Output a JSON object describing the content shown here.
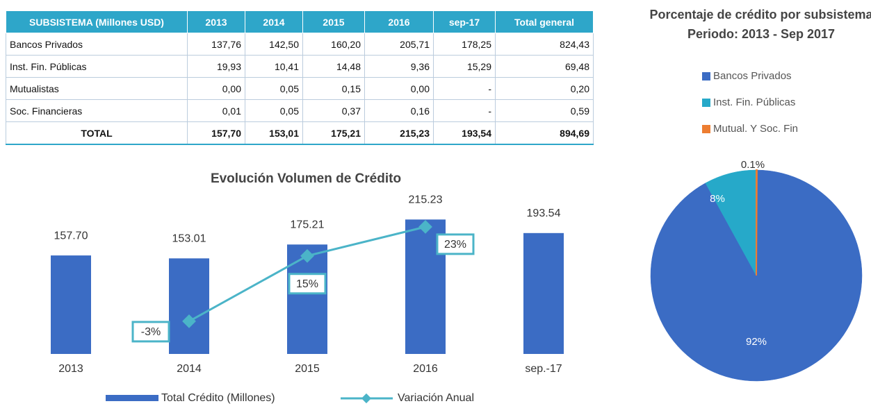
{
  "table": {
    "header": [
      "SUBSISTEMA (Millones USD)",
      "2013",
      "2014",
      "2015",
      "2016",
      "sep-17",
      "Total general"
    ],
    "rows": [
      [
        "Bancos Privados",
        "137,76",
        "142,50",
        "160,20",
        "205,71",
        "178,25",
        "824,43"
      ],
      [
        "Inst. Fin. Públicas",
        "19,93",
        "10,41",
        "14,48",
        "9,36",
        "15,29",
        "69,48"
      ],
      [
        "Mutualistas",
        "0,00",
        "0,05",
        "0,15",
        "0,00",
        "-",
        "0,20"
      ],
      [
        "Soc. Financieras",
        "0,01",
        "0,05",
        "0,37",
        "0,16",
        "-",
        "0,59"
      ]
    ],
    "total": [
      "TOTAL",
      "157,70",
      "153,01",
      "175,21",
      "215,23",
      "193,54",
      "894,69"
    ]
  },
  "chart_data": [
    {
      "type": "bar",
      "title": "Evolución Volumen de Crédito",
      "categories": [
        "2013",
        "2014",
        "2015",
        "2016",
        "sep.-17"
      ],
      "series": [
        {
          "name": "Total Crédito (Millones)",
          "color": "#3b6cc4",
          "values": [
            157.7,
            153.01,
            175.21,
            215.23,
            193.54
          ],
          "value_labels": [
            "157.70",
            "153.01",
            "175.21",
            "215.23",
            "193.54"
          ]
        },
        {
          "name": "Variación Anual",
          "type": "line",
          "axis": "y2",
          "color": "#4bb4c8",
          "values": [
            null,
            -3,
            15,
            23,
            null
          ],
          "value_labels": [
            null,
            "-3%",
            "15%",
            "23%",
            null
          ]
        }
      ],
      "ylim": [
        0,
        250
      ],
      "y2lim": [
        -12,
        31
      ],
      "grid": false,
      "legend": "bottom"
    },
    {
      "type": "pie",
      "title": "Porcentaje de crédito por subsistema",
      "subtitle": "Periodo: 2013 - Sep 2017",
      "categories": [
        "Bancos Privados",
        "Inst. Fin. Públicas",
        "Mutual. Y Soc. Fin"
      ],
      "values": [
        92,
        8,
        0.1
      ],
      "value_labels": [
        "92%",
        "8%",
        "0.1%"
      ],
      "colors": [
        "#3b6cc4",
        "#26a9c9",
        "#ed7d31"
      ],
      "legend": "top"
    }
  ]
}
